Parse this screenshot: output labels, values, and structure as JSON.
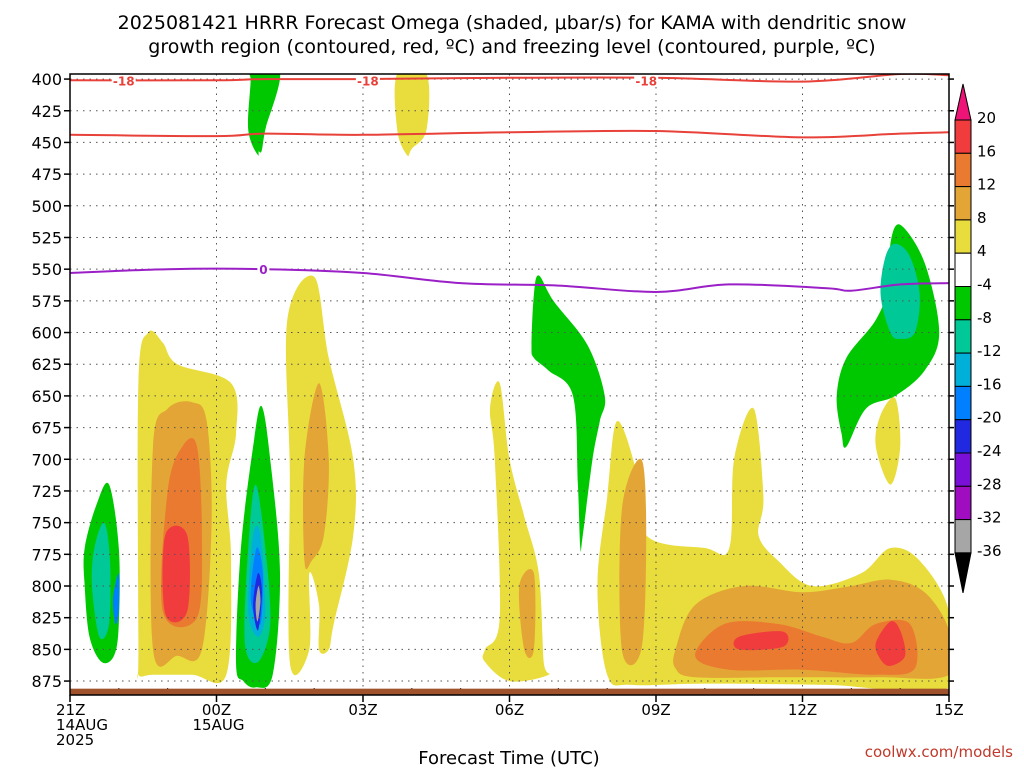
{
  "title_line1": "2025081421 HRRR Forecast Omega (shaded, μbar/s) for KAMA with dendritic snow",
  "title_line2": "growth region (contoured, red, ºC) and freezing level (contoured, purple, ºC)",
  "credit": "coolwx.com/models",
  "colors": {
    "dgz": "#e8413a",
    "freezing": "#9b1fc6",
    "terrain": "#a0522d",
    "grid": "#555555"
  },
  "chart_data": {
    "type": "contour",
    "title": "2025081421 HRRR Forecast Omega (shaded, μbar/s) for KAMA with dendritic snow growth region (contoured, red, ºC) and freezing level (contoured, purple, ºC)",
    "xlabel": "Forecast Time (UTC)",
    "ylabel": "",
    "x_range_hours": [
      0,
      18
    ],
    "y_range_hPa": [
      886,
      396
    ],
    "x_ticks": [
      {
        "hour": 0,
        "lines": [
          "21Z",
          "14AUG",
          "2025"
        ]
      },
      {
        "hour": 3,
        "lines": [
          "00Z",
          "15AUG"
        ]
      },
      {
        "hour": 6,
        "lines": [
          "03Z"
        ]
      },
      {
        "hour": 9,
        "lines": [
          "06Z"
        ]
      },
      {
        "hour": 12,
        "lines": [
          "09Z"
        ]
      },
      {
        "hour": 15,
        "lines": [
          "12Z"
        ]
      },
      {
        "hour": 18,
        "lines": [
          "15Z"
        ]
      }
    ],
    "y_ticks": [
      400,
      425,
      450,
      475,
      500,
      525,
      550,
      575,
      600,
      625,
      650,
      675,
      700,
      725,
      750,
      775,
      800,
      825,
      850,
      875
    ],
    "grid": true,
    "colorbar": {
      "labels": [
        20,
        16,
        12,
        8,
        4,
        -4,
        -8,
        -12,
        -16,
        -20,
        -24,
        -28,
        -32,
        -36
      ],
      "colors": [
        "#ee1377",
        "#f03c3c",
        "#ea7a30",
        "#e3a535",
        "#e8dd3c",
        "#ffffff",
        "#00c800",
        "#00c896",
        "#00b0d8",
        "#0080ff",
        "#2028e0",
        "#7a10d8",
        "#a00dc0",
        "#a6a6a6",
        "#000000"
      ]
    },
    "contours": {
      "dgz_upper_label": "-18",
      "dgz_upper": [
        [
          0,
          401
        ],
        [
          3,
          401
        ],
        [
          4,
          400
        ],
        [
          6,
          400
        ],
        [
          9,
          399
        ],
        [
          12,
          399
        ],
        [
          15,
          402
        ],
        [
          17,
          396
        ],
        [
          18,
          397
        ]
      ],
      "dgz_lower": [
        [
          0,
          444
        ],
        [
          3,
          445
        ],
        [
          4,
          443
        ],
        [
          6,
          444
        ],
        [
          9,
          442
        ],
        [
          12,
          441
        ],
        [
          15,
          446
        ],
        [
          17,
          443
        ],
        [
          18,
          442
        ]
      ],
      "freezing_label": "0",
      "freezing": [
        [
          0,
          553
        ],
        [
          2,
          550
        ],
        [
          4,
          550
        ],
        [
          6,
          553
        ],
        [
          8,
          561
        ],
        [
          10,
          563
        ],
        [
          12,
          568
        ],
        [
          13.5,
          562
        ],
        [
          15.5,
          565
        ],
        [
          16,
          567
        ],
        [
          17,
          562
        ],
        [
          18,
          561
        ]
      ]
    },
    "omega_regions": [
      {
        "value": -4,
        "pts": [
          [
            0.3,
            800
          ],
          [
            0.3,
            770
          ],
          [
            0.55,
            735
          ],
          [
            0.8,
            720
          ],
          [
            1.0,
            770
          ],
          [
            1.0,
            830
          ],
          [
            0.9,
            855
          ],
          [
            0.65,
            860
          ],
          [
            0.4,
            840
          ]
        ]
      },
      {
        "value": -8,
        "pts": [
          [
            0.45,
            800
          ],
          [
            0.5,
            770
          ],
          [
            0.7,
            750
          ],
          [
            0.82,
            780
          ],
          [
            0.8,
            830
          ],
          [
            0.6,
            840
          ]
        ]
      },
      {
        "value": -16,
        "pts": [
          [
            0.88,
            810
          ],
          [
            1.0,
            790
          ],
          [
            1.0,
            820
          ],
          [
            0.93,
            830
          ]
        ]
      },
      {
        "value": 4,
        "pts": [
          [
            1.4,
            850
          ],
          [
            1.4,
            640
          ],
          [
            1.6,
            600
          ],
          [
            1.9,
            608
          ],
          [
            2.2,
            625
          ],
          [
            3.3,
            640
          ],
          [
            3.4,
            680
          ],
          [
            3.2,
            720
          ],
          [
            3.3,
            780
          ],
          [
            3.2,
            870
          ],
          [
            2.5,
            870
          ],
          [
            1.7,
            870
          ],
          [
            1.4,
            870
          ]
        ]
      },
      {
        "value": 8,
        "pts": [
          [
            1.7,
            850
          ],
          [
            1.7,
            690
          ],
          [
            2.0,
            660
          ],
          [
            2.5,
            655
          ],
          [
            2.8,
            670
          ],
          [
            2.9,
            750
          ],
          [
            2.7,
            850
          ],
          [
            2.2,
            855
          ]
        ]
      },
      {
        "value": 12,
        "pts": [
          [
            1.9,
            820
          ],
          [
            2.0,
            725
          ],
          [
            2.3,
            690
          ],
          [
            2.6,
            690
          ],
          [
            2.7,
            760
          ],
          [
            2.6,
            825
          ]
        ]
      },
      {
        "value": 16,
        "pts": [
          [
            1.95,
            822
          ],
          [
            1.95,
            760
          ],
          [
            2.4,
            760
          ],
          [
            2.4,
            820
          ]
        ]
      },
      {
        "value": -4,
        "pts": [
          [
            3.4,
            860
          ],
          [
            3.5,
            770
          ],
          [
            3.75,
            690
          ],
          [
            3.92,
            658
          ],
          [
            4.1,
            700
          ],
          [
            4.3,
            790
          ],
          [
            4.15,
            870
          ],
          [
            3.8,
            880
          ],
          [
            3.55,
            875
          ]
        ]
      },
      {
        "value": -8,
        "pts": [
          [
            3.58,
            845
          ],
          [
            3.65,
            770
          ],
          [
            3.8,
            720
          ],
          [
            4.0,
            770
          ],
          [
            4.1,
            830
          ],
          [
            3.85,
            860
          ]
        ]
      },
      {
        "value": -12,
        "pts": [
          [
            3.65,
            820
          ],
          [
            3.75,
            760
          ],
          [
            3.9,
            760
          ],
          [
            4.0,
            820
          ],
          [
            3.85,
            840
          ]
        ]
      },
      {
        "value": -16,
        "pts": [
          [
            3.7,
            810
          ],
          [
            3.82,
            770
          ],
          [
            3.95,
            790
          ],
          [
            3.9,
            830
          ]
        ]
      },
      {
        "value": -20,
        "pts": [
          [
            3.75,
            815
          ],
          [
            3.85,
            790
          ],
          [
            3.93,
            805
          ],
          [
            3.85,
            835
          ]
        ]
      },
      {
        "value": -32,
        "pts": [
          [
            3.8,
            815
          ],
          [
            3.86,
            800
          ],
          [
            3.9,
            812
          ],
          [
            3.84,
            828
          ]
        ]
      },
      {
        "value": 4,
        "pts": [
          [
            4.5,
            860
          ],
          [
            4.5,
            710
          ],
          [
            4.45,
            590
          ],
          [
            5.0,
            556
          ],
          [
            5.3,
            620
          ],
          [
            5.8,
            700
          ],
          [
            5.8,
            760
          ],
          [
            5.4,
            830
          ],
          [
            5.3,
            850
          ],
          [
            5.1,
            850
          ],
          [
            5.1,
            815
          ],
          [
            4.9,
            790
          ],
          [
            4.9,
            850
          ]
        ]
      },
      {
        "value": 8,
        "pts": [
          [
            4.8,
            780
          ],
          [
            4.8,
            700
          ],
          [
            5.1,
            640
          ],
          [
            5.3,
            700
          ],
          [
            5.2,
            760
          ],
          [
            4.95,
            780
          ]
        ]
      },
      {
        "value": -4,
        "pts": [
          [
            3.65,
            440
          ],
          [
            3.7,
            400
          ],
          [
            3.65,
            396
          ],
          [
            4.3,
            396
          ],
          [
            3.9,
            450
          ],
          [
            3.85,
            460
          ]
        ]
      },
      {
        "value": 4,
        "pts": [
          [
            6.7,
            440
          ],
          [
            6.7,
            396
          ],
          [
            7.3,
            396
          ],
          [
            7.3,
            440
          ],
          [
            7.0,
            455
          ],
          [
            6.9,
            460
          ]
        ]
      },
      {
        "value": 4,
        "pts": [
          [
            8.5,
            850
          ],
          [
            8.8,
            825
          ],
          [
            8.7,
            700
          ],
          [
            8.6,
            660
          ],
          [
            8.8,
            640
          ],
          [
            9.0,
            700
          ],
          [
            9.3,
            745
          ],
          [
            9.6,
            790
          ],
          [
            9.7,
            860
          ],
          [
            9.8,
            870
          ],
          [
            9.0,
            875
          ],
          [
            8.5,
            860
          ]
        ]
      },
      {
        "value": 8,
        "pts": [
          [
            9.3,
            850
          ],
          [
            9.2,
            800
          ],
          [
            9.5,
            790
          ],
          [
            9.5,
            850
          ]
        ]
      },
      {
        "value": -4,
        "pts": [
          [
            9.45,
            610
          ],
          [
            9.5,
            570
          ],
          [
            9.6,
            555
          ],
          [
            9.9,
            575
          ],
          [
            10.6,
            610
          ],
          [
            10.95,
            650
          ],
          [
            10.85,
            670
          ],
          [
            10.7,
            700
          ],
          [
            10.5,
            760
          ],
          [
            10.45,
            770
          ],
          [
            10.4,
            720
          ],
          [
            10.3,
            650
          ],
          [
            9.8,
            630
          ],
          [
            9.5,
            620
          ]
        ]
      },
      {
        "value": 4,
        "pts": [
          [
            11.0,
            870
          ],
          [
            10.8,
            800
          ],
          [
            11.0,
            730
          ],
          [
            11.2,
            670
          ],
          [
            11.6,
            710
          ],
          [
            11.8,
            760
          ],
          [
            13.0,
            770
          ],
          [
            13.5,
            770
          ],
          [
            13.6,
            700
          ],
          [
            14.0,
            660
          ],
          [
            14.2,
            730
          ],
          [
            14.1,
            760
          ],
          [
            14.5,
            780
          ],
          [
            15.2,
            800
          ],
          [
            16.2,
            790
          ],
          [
            16.8,
            770
          ],
          [
            17.4,
            780
          ],
          [
            18.0,
            820
          ],
          [
            18.0,
            880
          ],
          [
            15.5,
            878
          ],
          [
            13.0,
            877
          ],
          [
            11.5,
            878
          ]
        ]
      },
      {
        "value": 8,
        "pts": [
          [
            11.3,
            850
          ],
          [
            11.3,
            740
          ],
          [
            11.7,
            700
          ],
          [
            11.8,
            760
          ],
          [
            11.7,
            850
          ]
        ]
      },
      {
        "value": 8,
        "pts": [
          [
            12.4,
            850
          ],
          [
            12.8,
            815
          ],
          [
            13.8,
            800
          ],
          [
            15.0,
            805
          ],
          [
            16.0,
            800
          ],
          [
            16.8,
            795
          ],
          [
            17.5,
            805
          ],
          [
            18.0,
            835
          ],
          [
            18.0,
            870
          ],
          [
            16.5,
            872
          ],
          [
            14.5,
            872
          ],
          [
            12.8,
            872
          ],
          [
            12.4,
            865
          ]
        ]
      },
      {
        "value": 12,
        "pts": [
          [
            12.8,
            855
          ],
          [
            13.4,
            830
          ],
          [
            14.5,
            830
          ],
          [
            15.4,
            840
          ],
          [
            16.0,
            845
          ],
          [
            16.5,
            830
          ],
          [
            17.2,
            830
          ],
          [
            17.3,
            865
          ],
          [
            16.5,
            870
          ],
          [
            15.0,
            866
          ],
          [
            13.5,
            866
          ]
        ]
      },
      {
        "value": 16,
        "pts": [
          [
            13.7,
            840
          ],
          [
            14.6,
            836
          ],
          [
            14.6,
            848
          ],
          [
            13.7,
            850
          ]
        ]
      },
      {
        "value": 16,
        "pts": [
          [
            16.5,
            845
          ],
          [
            16.8,
            828
          ],
          [
            17.0,
            835
          ],
          [
            17.1,
            855
          ],
          [
            16.8,
            863
          ],
          [
            16.6,
            858
          ]
        ]
      },
      {
        "value": 4,
        "pts": [
          [
            16.5,
            690
          ],
          [
            16.6,
            665
          ],
          [
            16.9,
            652
          ],
          [
            17.0,
            690
          ],
          [
            16.8,
            720
          ]
        ]
      },
      {
        "value": -4,
        "pts": [
          [
            15.7,
            650
          ],
          [
            15.9,
            620
          ],
          [
            16.5,
            590
          ],
          [
            16.8,
            560
          ],
          [
            16.8,
            530
          ],
          [
            17.0,
            515
          ],
          [
            17.5,
            545
          ],
          [
            17.8,
            600
          ],
          [
            17.5,
            630
          ],
          [
            16.9,
            650
          ],
          [
            16.3,
            660
          ],
          [
            15.9,
            690
          ],
          [
            15.8,
            680
          ]
        ]
      },
      {
        "value": -8,
        "pts": [
          [
            16.6,
            570
          ],
          [
            16.7,
            540
          ],
          [
            16.9,
            530
          ],
          [
            17.2,
            540
          ],
          [
            17.4,
            570
          ],
          [
            17.3,
            600
          ],
          [
            17.0,
            605
          ],
          [
            16.8,
            600
          ]
        ]
      },
      {
        "value": -4,
        "pts": [
          [
            3.7,
            400
          ],
          [
            3.65,
            396
          ],
          [
            4.25,
            396
          ],
          [
            4.0,
            440
          ],
          [
            3.9,
            458
          ],
          [
            3.75,
            440
          ]
        ]
      }
    ]
  }
}
